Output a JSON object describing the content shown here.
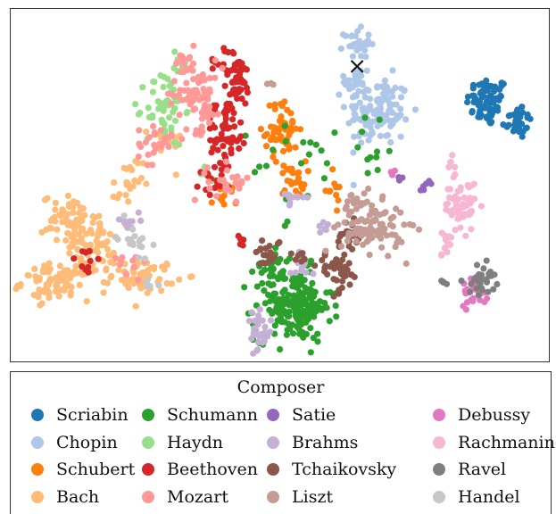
{
  "chart_data": {
    "type": "scatter",
    "title": "",
    "xlabel": "",
    "ylabel": "",
    "grid": false,
    "axes_ticks": false,
    "legend_title": "Composer",
    "legend_placement": "bottom",
    "xlim": [
      0,
      100
    ],
    "ylim": [
      0,
      100
    ],
    "marker": {
      "x": 64.5,
      "y": 84.2,
      "symbol": "×",
      "color": "#111111"
    },
    "series": [
      {
        "name": "Scriabin",
        "color": "#1f77b4",
        "clusters": [
          {
            "cx": 89,
            "cy": 74,
            "sx": 2.0,
            "sy": 3.6,
            "n": 70
          },
          {
            "cx": 94.5,
            "cy": 68.5,
            "sx": 1.4,
            "sy": 2.6,
            "n": 35
          }
        ]
      },
      {
        "name": "Chopin",
        "color": "#aec7e8",
        "clusters": [
          {
            "cx": 68.5,
            "cy": 71,
            "sx": 3.0,
            "sy": 5.0,
            "n": 120
          },
          {
            "cx": 64.5,
            "cy": 91,
            "sx": 1.2,
            "sy": 2.0,
            "n": 30
          },
          {
            "cx": 64.5,
            "cy": 80,
            "sx": 1.2,
            "sy": 3.0,
            "n": 30
          }
        ]
      },
      {
        "name": "Schubert",
        "color": "#ff7f0e",
        "clusters": [
          {
            "cx": 50.5,
            "cy": 66,
            "sx": 1.6,
            "sy": 4.0,
            "n": 55
          },
          {
            "cx": 52.5,
            "cy": 52,
            "sx": 1.2,
            "sy": 2.5,
            "n": 25
          },
          {
            "cx": 39.5,
            "cy": 46.5,
            "sx": 1.2,
            "sy": 2.0,
            "n": 16
          },
          {
            "cx": 60,
            "cy": 49,
            "sx": 0.8,
            "sy": 2.2,
            "n": 10
          }
        ]
      },
      {
        "name": "Bach",
        "color": "#ffbb78",
        "clusters": [
          {
            "cx": 8,
            "cy": 22,
            "sx": 3.2,
            "sy": 2.6,
            "n": 90
          },
          {
            "cx": 10.5,
            "cy": 40,
            "sx": 2.5,
            "sy": 3.5,
            "n": 55
          },
          {
            "cx": 14.5,
            "cy": 33,
            "sx": 2.2,
            "sy": 4.0,
            "n": 60
          },
          {
            "cx": 24.5,
            "cy": 24,
            "sx": 3.0,
            "sy": 2.3,
            "n": 60
          },
          {
            "cx": 21.5,
            "cy": 50,
            "sx": 1.4,
            "sy": 4.0,
            "n": 22
          },
          {
            "cx": 28.5,
            "cy": 62,
            "sx": 1.5,
            "sy": 3.0,
            "n": 18
          }
        ]
      },
      {
        "name": "Schumann",
        "color": "#2ca02c",
        "clusters": [
          {
            "cx": 52.5,
            "cy": 15.5,
            "sx": 3.6,
            "sy": 5.2,
            "n": 190
          },
          {
            "cx": 48.5,
            "cy": 28,
            "sx": 1.5,
            "sy": 3.0,
            "n": 25
          },
          {
            "cx": 55,
            "cy": 55,
            "sx": 5.0,
            "sy": 7.0,
            "n": 18
          },
          {
            "cx": 66,
            "cy": 62,
            "sx": 3.5,
            "sy": 5.0,
            "n": 12
          }
        ]
      },
      {
        "name": "Haydn",
        "color": "#98df8a",
        "clusters": [
          {
            "cx": 28.5,
            "cy": 72,
            "sx": 1.8,
            "sy": 5.5,
            "n": 55
          },
          {
            "cx": 31,
            "cy": 85,
            "sx": 0.9,
            "sy": 2.5,
            "n": 10
          },
          {
            "cx": 37,
            "cy": 54,
            "sx": 0.8,
            "sy": 1.5,
            "n": 6
          }
        ]
      },
      {
        "name": "Beethoven",
        "color": "#d62728",
        "clusters": [
          {
            "cx": 42,
            "cy": 80,
            "sx": 1.4,
            "sy": 4.0,
            "n": 45
          },
          {
            "cx": 40,
            "cy": 66,
            "sx": 2.0,
            "sy": 4.5,
            "n": 55
          },
          {
            "cx": 38,
            "cy": 52,
            "sx": 2.0,
            "sy": 2.5,
            "n": 20
          },
          {
            "cx": 13.5,
            "cy": 28,
            "sx": 1.5,
            "sy": 2.5,
            "n": 10
          },
          {
            "cx": 42.5,
            "cy": 35,
            "sx": 0.7,
            "sy": 1.5,
            "n": 5
          },
          {
            "cx": 39,
            "cy": 87,
            "sx": 1.0,
            "sy": 2.5,
            "n": 8
          }
        ]
      },
      {
        "name": "Mozart",
        "color": "#ff9896",
        "clusters": [
          {
            "cx": 34.5,
            "cy": 76,
            "sx": 2.4,
            "sy": 5.0,
            "n": 70
          },
          {
            "cx": 26.5,
            "cy": 62,
            "sx": 1.6,
            "sy": 3.0,
            "n": 25
          },
          {
            "cx": 40.5,
            "cy": 51,
            "sx": 2.0,
            "sy": 2.5,
            "n": 25
          },
          {
            "cx": 32.5,
            "cy": 85,
            "sx": 1.2,
            "sy": 2.0,
            "n": 15
          },
          {
            "cx": 22,
            "cy": 28,
            "sx": 1.8,
            "sy": 2.0,
            "n": 10
          }
        ]
      },
      {
        "name": "Satie",
        "color": "#9467bd",
        "clusters": [
          {
            "cx": 77.5,
            "cy": 50.5,
            "sx": 0.6,
            "sy": 0.8,
            "n": 6
          },
          {
            "cx": 72.5,
            "cy": 52.5,
            "sx": 0.5,
            "sy": 0.5,
            "n": 3
          }
        ]
      },
      {
        "name": "Brahms",
        "color": "#c5b0d5",
        "clusters": [
          {
            "cx": 46,
            "cy": 7,
            "sx": 1.2,
            "sy": 3.0,
            "n": 30
          },
          {
            "cx": 52.5,
            "cy": 46.5,
            "sx": 1.2,
            "sy": 1.5,
            "n": 10
          },
          {
            "cx": 54,
            "cy": 27,
            "sx": 1.0,
            "sy": 2.0,
            "n": 10
          },
          {
            "cx": 21.5,
            "cy": 40,
            "sx": 1.2,
            "sy": 1.5,
            "n": 10
          },
          {
            "cx": 58,
            "cy": 37,
            "sx": 1.0,
            "sy": 1.0,
            "n": 6
          }
        ]
      },
      {
        "name": "Tchaikovsky",
        "color": "#8c564b",
        "clusters": [
          {
            "cx": 61,
            "cy": 25,
            "sx": 2.0,
            "sy": 3.0,
            "n": 40
          },
          {
            "cx": 63,
            "cy": 35,
            "sx": 1.2,
            "sy": 3.0,
            "n": 22
          },
          {
            "cx": 48,
            "cy": 31,
            "sx": 1.2,
            "sy": 2.0,
            "n": 20
          },
          {
            "cx": 53.5,
            "cy": 30,
            "sx": 1.0,
            "sy": 1.5,
            "n": 8
          }
        ]
      },
      {
        "name": "Liszt",
        "color": "#c49c94",
        "clusters": [
          {
            "cx": 67.5,
            "cy": 37.5,
            "sx": 3.0,
            "sy": 3.5,
            "n": 90
          },
          {
            "cx": 64.5,
            "cy": 44,
            "sx": 1.4,
            "sy": 2.0,
            "n": 20
          },
          {
            "cx": 48.5,
            "cy": 79,
            "sx": 0.5,
            "sy": 0.8,
            "n": 3
          }
        ]
      },
      {
        "name": "Debussy",
        "color": "#e377c2",
        "clusters": [
          {
            "cx": 86.5,
            "cy": 20,
            "sx": 1.3,
            "sy": 2.2,
            "n": 30
          },
          {
            "cx": 71.5,
            "cy": 53.5,
            "sx": 0.6,
            "sy": 0.5,
            "n": 4
          }
        ]
      },
      {
        "name": "Rachmaninoff",
        "color": "#f7b6d2",
        "clusters": [
          {
            "cx": 84,
            "cy": 44,
            "sx": 1.5,
            "sy": 3.5,
            "n": 55
          },
          {
            "cx": 81,
            "cy": 33,
            "sx": 0.6,
            "sy": 2.0,
            "n": 12
          },
          {
            "cx": 82.5,
            "cy": 56,
            "sx": 0.6,
            "sy": 1.5,
            "n": 6
          }
        ]
      },
      {
        "name": "Ravel",
        "color": "#7f7f7f",
        "clusters": [
          {
            "cx": 88,
            "cy": 23,
            "sx": 1.3,
            "sy": 2.2,
            "n": 30
          },
          {
            "cx": 80.5,
            "cy": 22,
            "sx": 0.4,
            "sy": 1.0,
            "n": 5
          }
        ]
      },
      {
        "name": "Handel",
        "color": "#c7c7c7",
        "clusters": [
          {
            "cx": 22.5,
            "cy": 35,
            "sx": 1.5,
            "sy": 2.5,
            "n": 18
          },
          {
            "cx": 25.5,
            "cy": 22,
            "sx": 1.0,
            "sy": 1.5,
            "n": 6
          }
        ]
      }
    ],
    "legend_rows": [
      [
        "Scriabin",
        "Schumann",
        "Satie",
        "Debussy"
      ],
      [
        "Chopin",
        "Haydn",
        "Brahms",
        "Rachmaninoff"
      ],
      [
        "Schubert",
        "Beethoven",
        "Tchaikovsky",
        "Ravel"
      ],
      [
        "Bach",
        "Mozart",
        "Liszt",
        "Handel"
      ]
    ]
  }
}
